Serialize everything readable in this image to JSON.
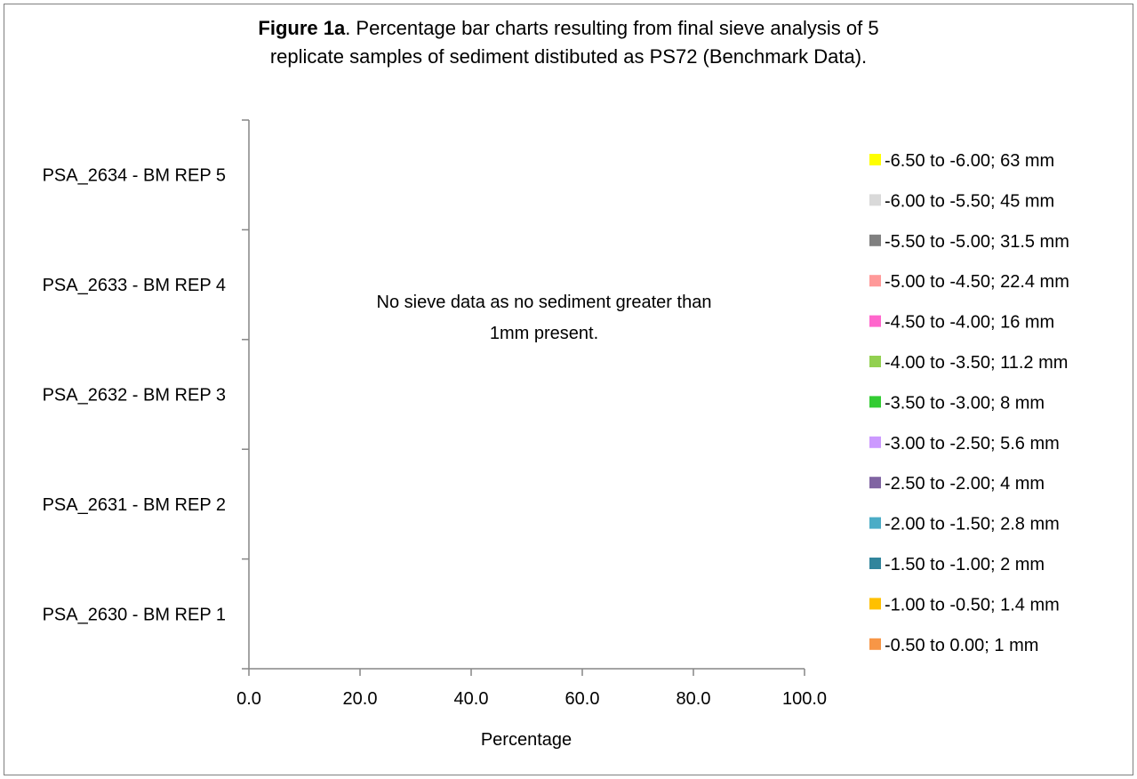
{
  "chart_data": {
    "type": "bar",
    "orientation": "horizontal",
    "stacked": true,
    "percent": true,
    "title_prefix": "Figure 1a",
    "title_line1": ".  Percentage bar charts resulting from final sieve analysis of 5",
    "title_line2": "replicate samples of sediment distibuted as PS72 (Benchmark Data).",
    "xlabel": "Percentage",
    "ylabel": "",
    "xlim": [
      0,
      100
    ],
    "x_ticks": [
      "0.0",
      "20.0",
      "40.0",
      "60.0",
      "80.0",
      "100.0"
    ],
    "categories": [
      "PSA_2634 - BM REP 5",
      "PSA_2633 - BM REP 4",
      "PSA_2632 - BM REP 3",
      "PSA_2631 - BM REP 2",
      "PSA_2630 - BM REP 1"
    ],
    "annotation_line1": "No sieve data as no sediment greater than",
    "annotation_line2": "1mm present.",
    "grid": false,
    "legend_position": "right",
    "series": [
      {
        "name": "-6.50 to -6.00; 63 mm",
        "color": "#ffff00",
        "values": [
          0,
          0,
          0,
          0,
          0
        ]
      },
      {
        "name": "-6.00 to -5.50; 45 mm",
        "color": "#d9d9d9",
        "values": [
          0,
          0,
          0,
          0,
          0
        ]
      },
      {
        "name": "-5.50 to -5.00; 31.5 mm",
        "color": "#808080",
        "values": [
          0,
          0,
          0,
          0,
          0
        ]
      },
      {
        "name": "-5.00 to -4.50; 22.4 mm",
        "color": "#ff9999",
        "values": [
          0,
          0,
          0,
          0,
          0
        ]
      },
      {
        "name": "-4.50 to -4.00; 16 mm",
        "color": "#ff66cc",
        "values": [
          0,
          0,
          0,
          0,
          0
        ]
      },
      {
        "name": "-4.00 to -3.50; 11.2 mm",
        "color": "#92d050",
        "values": [
          0,
          0,
          0,
          0,
          0
        ]
      },
      {
        "name": "-3.50 to -3.00; 8 mm",
        "color": "#33cc33",
        "values": [
          0,
          0,
          0,
          0,
          0
        ]
      },
      {
        "name": "-3.00 to -2.50; 5.6 mm",
        "color": "#cc99ff",
        "values": [
          0,
          0,
          0,
          0,
          0
        ]
      },
      {
        "name": "-2.50 to -2.00; 4 mm",
        "color": "#8064a2",
        "values": [
          0,
          0,
          0,
          0,
          0
        ]
      },
      {
        "name": "-2.00 to -1.50; 2.8 mm",
        "color": "#4bacc6",
        "values": [
          0,
          0,
          0,
          0,
          0
        ]
      },
      {
        "name": "-1.50 to -1.00; 2 mm",
        "color": "#31859c",
        "values": [
          0,
          0,
          0,
          0,
          0
        ]
      },
      {
        "name": "-1.00 to -0.50; 1.4 mm",
        "color": "#ffc000",
        "values": [
          0,
          0,
          0,
          0,
          0
        ]
      },
      {
        "name": "-0.50 to 0.00; 1 mm",
        "color": "#f79646",
        "values": [
          0,
          0,
          0,
          0,
          0
        ]
      }
    ]
  }
}
